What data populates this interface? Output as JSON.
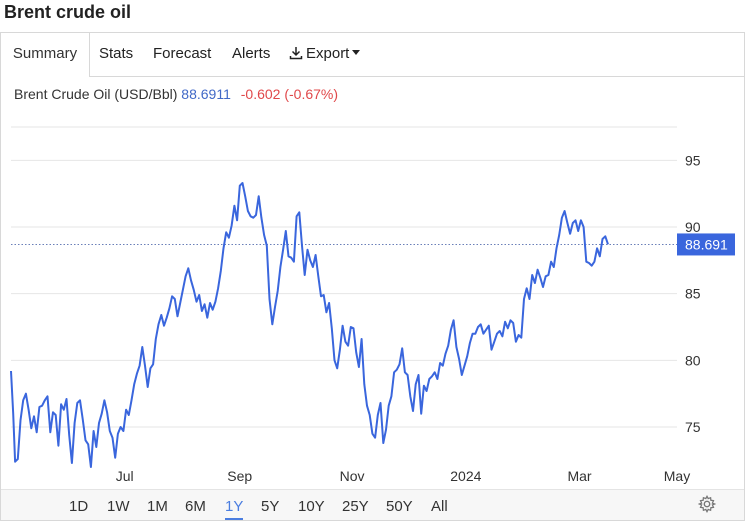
{
  "page": {
    "title": "Brent crude oil"
  },
  "tabs": [
    {
      "label": "Summary",
      "active": true
    },
    {
      "label": "Stats"
    },
    {
      "label": "Forecast"
    },
    {
      "label": "Alerts"
    },
    {
      "label": "Export",
      "icon": "download-icon"
    }
  ],
  "legend": {
    "name": "Brent Crude Oil (USD/Bbl)",
    "price": "88.6911",
    "change": "-0.602 (-0.67%)"
  },
  "ranges": [
    "1D",
    "1W",
    "1M",
    "6M",
    "1Y",
    "5Y",
    "10Y",
    "25Y",
    "50Y",
    "All"
  ],
  "active_range": "1Y",
  "colors": {
    "line": "#3a66dd",
    "price_tag": "#3a66dd",
    "change_negative": "#e0484a",
    "grid": "#e6e6e6"
  },
  "chart_data": {
    "type": "line",
    "title": "Brent crude oil",
    "series": [
      {
        "name": "Brent Crude Oil (USD/Bbl)",
        "values": [
          [
            0,
            79.2
          ],
          [
            0.8,
            76.0
          ],
          [
            1.5,
            72.4
          ],
          [
            2.5,
            72.6
          ],
          [
            3.5,
            75.5
          ],
          [
            4.5,
            77.0
          ],
          [
            5.5,
            77.5
          ],
          [
            6.5,
            76.3
          ],
          [
            7.5,
            74.9
          ],
          [
            8.5,
            75.8
          ],
          [
            9.5,
            74.6
          ],
          [
            10.5,
            76.5
          ],
          [
            11.5,
            76.6
          ],
          [
            12.5,
            77.0
          ],
          [
            13.5,
            77.3
          ],
          [
            14.5,
            74.6
          ],
          [
            15.5,
            76.1
          ],
          [
            16.5,
            75.9
          ],
          [
            17.5,
            73.6
          ],
          [
            18.5,
            76.7
          ],
          [
            19.5,
            76.3
          ],
          [
            20.5,
            77.1
          ],
          [
            21.5,
            74.4
          ],
          [
            22.5,
            72.3
          ],
          [
            23.5,
            75.3
          ],
          [
            24.5,
            76.8
          ],
          [
            25.5,
            77.0
          ],
          [
            26.5,
            75.6
          ],
          [
            27.5,
            74.0
          ],
          [
            28.5,
            73.7
          ],
          [
            29.5,
            72.0
          ],
          [
            30.5,
            74.7
          ],
          [
            31.5,
            73.5
          ],
          [
            32.5,
            75.3
          ],
          [
            33.5,
            76.0
          ],
          [
            34.5,
            77.0
          ],
          [
            35.5,
            76.1
          ],
          [
            36.5,
            74.7
          ],
          [
            37.5,
            74.2
          ],
          [
            38.5,
            72.7
          ],
          [
            39.5,
            74.5
          ],
          [
            40.5,
            75.0
          ],
          [
            41.5,
            74.7
          ],
          [
            42.5,
            76.3
          ],
          [
            43.5,
            75.9
          ],
          [
            44.5,
            77.0
          ],
          [
            45.5,
            78.2
          ],
          [
            46.5,
            79.0
          ],
          [
            47.5,
            79.6
          ],
          [
            48.5,
            81.0
          ],
          [
            49.5,
            79.6
          ],
          [
            50.5,
            78.0
          ],
          [
            51.5,
            79.4
          ],
          [
            52.5,
            79.7
          ],
          [
            53.5,
            81.6
          ],
          [
            54.5,
            82.7
          ],
          [
            55.5,
            83.4
          ],
          [
            56.5,
            82.6
          ],
          [
            57.5,
            83.2
          ],
          [
            58.5,
            83.9
          ],
          [
            59.5,
            84.8
          ],
          [
            60.5,
            84.6
          ],
          [
            61.5,
            83.3
          ],
          [
            62.5,
            84.3
          ],
          [
            63.5,
            85.3
          ],
          [
            64.5,
            86.3
          ],
          [
            65.5,
            86.9
          ],
          [
            66.5,
            86.0
          ],
          [
            67.5,
            85.3
          ],
          [
            68.5,
            84.4
          ],
          [
            69.5,
            84.9
          ],
          [
            70.5,
            83.7
          ],
          [
            71.5,
            84.2
          ],
          [
            72.5,
            83.2
          ],
          [
            73.5,
            84.3
          ],
          [
            74.5,
            83.8
          ],
          [
            75.5,
            84.4
          ],
          [
            76.5,
            85.4
          ],
          [
            77.5,
            86.7
          ],
          [
            78.5,
            88.4
          ],
          [
            79.5,
            89.6
          ],
          [
            80.5,
            89.2
          ],
          [
            81.5,
            90.1
          ],
          [
            82.5,
            91.6
          ],
          [
            83.5,
            90.5
          ],
          [
            84.5,
            93.1
          ],
          [
            85.5,
            93.3
          ],
          [
            86.5,
            92.3
          ],
          [
            87.5,
            91.2
          ],
          [
            88.5,
            90.8
          ],
          [
            89.5,
            90.7
          ],
          [
            90.5,
            90.9
          ],
          [
            91.5,
            92.3
          ],
          [
            92.5,
            90.7
          ],
          [
            93.5,
            89.4
          ],
          [
            94.5,
            88.6
          ],
          [
            95.5,
            84.6
          ],
          [
            96.5,
            82.7
          ],
          [
            97.5,
            84.0
          ],
          [
            98.5,
            85.2
          ],
          [
            99.5,
            87.0
          ],
          [
            100.5,
            88.3
          ],
          [
            101.5,
            89.7
          ],
          [
            102.5,
            87.8
          ],
          [
            103.5,
            87.7
          ],
          [
            104.5,
            87.4
          ],
          [
            105.5,
            90.8
          ],
          [
            106.5,
            91.1
          ],
          [
            107.5,
            88.6
          ],
          [
            108.5,
            86.4
          ],
          [
            109.5,
            88.3
          ],
          [
            110.5,
            87.5
          ],
          [
            111.5,
            87.0
          ],
          [
            112.5,
            87.9
          ],
          [
            113.5,
            86.3
          ],
          [
            114.5,
            84.8
          ],
          [
            115.5,
            84.9
          ],
          [
            116.5,
            83.6
          ],
          [
            117.5,
            84.3
          ],
          [
            118.5,
            82.4
          ],
          [
            119.5,
            80.0
          ],
          [
            120.5,
            79.4
          ],
          [
            121.5,
            80.8
          ],
          [
            122.5,
            82.6
          ],
          [
            123.5,
            81.4
          ],
          [
            124.5,
            81.1
          ],
          [
            125.5,
            82.5
          ],
          [
            126.5,
            82.4
          ],
          [
            127.5,
            80.6
          ],
          [
            128.5,
            79.5
          ],
          [
            129.5,
            81.6
          ],
          [
            130.5,
            78.2
          ],
          [
            131.5,
            76.6
          ],
          [
            132.5,
            75.9
          ],
          [
            133.5,
            74.5
          ],
          [
            134.5,
            74.2
          ],
          [
            135.5,
            75.9
          ],
          [
            136.5,
            76.8
          ],
          [
            137.5,
            73.8
          ],
          [
            138.5,
            74.8
          ],
          [
            139.5,
            76.6
          ],
          [
            140.5,
            77.3
          ],
          [
            141.5,
            79.1
          ],
          [
            142.5,
            79.3
          ],
          [
            143.5,
            79.7
          ],
          [
            144.5,
            80.9
          ],
          [
            145.5,
            79.1
          ],
          [
            146.5,
            78.9
          ],
          [
            147.5,
            77.3
          ],
          [
            148.5,
            76.2
          ],
          [
            149.5,
            78.2
          ],
          [
            150.5,
            78.9
          ],
          [
            151.5,
            76.0
          ],
          [
            152.5,
            78.1
          ],
          [
            153.5,
            77.7
          ],
          [
            154.5,
            78.6
          ],
          [
            155.5,
            78.8
          ],
          [
            156.5,
            79.1
          ],
          [
            157.5,
            78.6
          ],
          [
            158.5,
            79.8
          ],
          [
            159.5,
            79.6
          ],
          [
            160.5,
            80.5
          ],
          [
            161.5,
            81.1
          ],
          [
            162.5,
            82.3
          ],
          [
            163.5,
            83.0
          ],
          [
            164.5,
            81.0
          ],
          [
            165.5,
            80.1
          ],
          [
            166.5,
            78.9
          ],
          [
            167.5,
            79.6
          ],
          [
            168.5,
            80.3
          ],
          [
            169.5,
            81.3
          ],
          [
            170.5,
            82.0
          ],
          [
            171.5,
            82.0
          ],
          [
            172.5,
            82.5
          ],
          [
            173.5,
            82.7
          ],
          [
            174.5,
            82.0
          ],
          [
            175.5,
            82.3
          ],
          [
            176.5,
            82.6
          ],
          [
            177.5,
            80.8
          ],
          [
            178.5,
            81.4
          ],
          [
            179.5,
            82.0
          ],
          [
            180.5,
            82.2
          ],
          [
            181.5,
            81.8
          ],
          [
            182.5,
            82.9
          ],
          [
            183.5,
            82.4
          ],
          [
            184.5,
            83.0
          ],
          [
            185.5,
            82.8
          ],
          [
            186.5,
            81.4
          ],
          [
            187.5,
            81.9
          ],
          [
            188.5,
            81.7
          ],
          [
            189.5,
            84.6
          ],
          [
            190.5,
            85.4
          ],
          [
            191.5,
            84.6
          ],
          [
            192.5,
            86.4
          ],
          [
            193.5,
            85.8
          ],
          [
            194.5,
            86.8
          ],
          [
            195.5,
            86.2
          ],
          [
            196.5,
            85.5
          ],
          [
            197.5,
            86.3
          ],
          [
            198.5,
            86.4
          ],
          [
            199.5,
            87.4
          ],
          [
            200.5,
            87.0
          ],
          [
            201.5,
            88.4
          ],
          [
            202.5,
            89.4
          ],
          [
            203.5,
            90.7
          ],
          [
            204.5,
            91.2
          ],
          [
            205.5,
            90.3
          ],
          [
            206.5,
            89.5
          ],
          [
            207.5,
            90.3
          ],
          [
            208.5,
            90.5
          ],
          [
            209.5,
            89.7
          ],
          [
            210.5,
            90.5
          ],
          [
            211.5,
            90.0
          ],
          [
            212.5,
            87.4
          ],
          [
            213.5,
            87.3
          ],
          [
            214.5,
            87.1
          ],
          [
            215.5,
            87.4
          ],
          [
            216.5,
            88.4
          ],
          [
            217.5,
            87.8
          ],
          [
            218.5,
            89.1
          ],
          [
            219.5,
            89.3
          ],
          [
            220.5,
            88.7
          ]
        ]
      }
    ],
    "x_tick_labels": [
      "Jul",
      "Sep",
      "Nov",
      "2024",
      "Mar",
      "May"
    ],
    "x_tick_positions": [
      42,
      84.5,
      126,
      168,
      210,
      246
    ],
    "y_ticks": [
      75,
      80,
      85,
      90,
      95
    ],
    "ylim": [
      70.5,
      99
    ],
    "xlim": [
      0,
      246
    ],
    "last_value_label": "88.691",
    "current_value": 88.691,
    "grid": true,
    "legend": "top-left"
  }
}
